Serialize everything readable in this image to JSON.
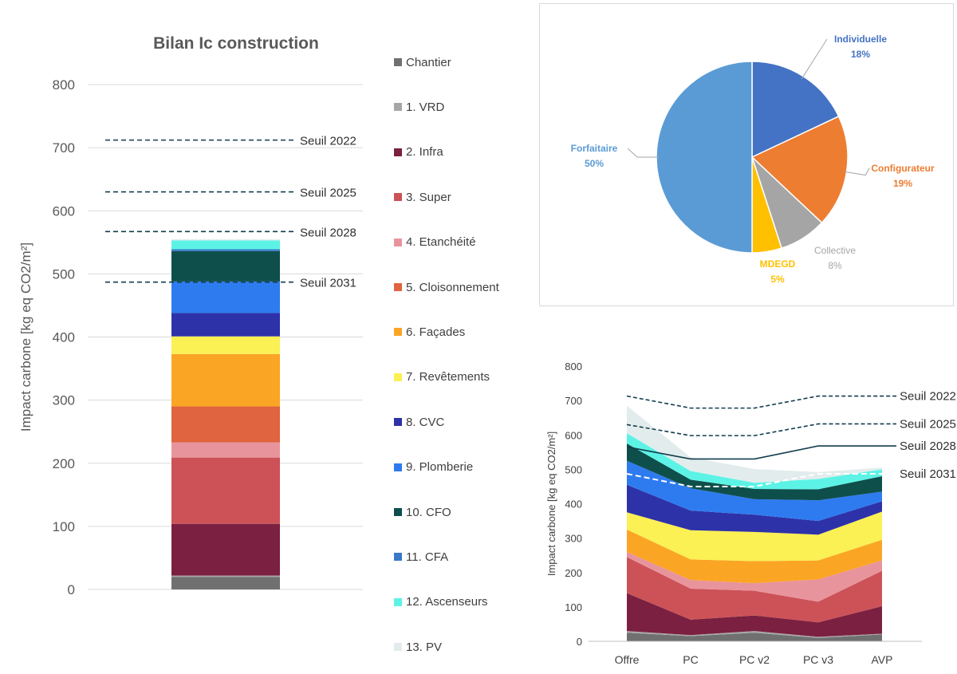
{
  "colors": {
    "Chantier": "#707070",
    "1. VRD": "#a6a6a6",
    "2. Infra": "#7b2041",
    "3. Super": "#cc5257",
    "4. Etanchéité": "#e8949c",
    "5. Cloisonnement": "#e0643f",
    "6. Façades": "#fba525",
    "7. Revêtements": "#fbf054",
    "8. CVC": "#2e32a8",
    "9. Plomberie": "#2e7bf0",
    "10. CFO": "#0e4f4c",
    "11. CFA": "#3a78c8",
    "12. Ascenseurs": "#5cf3e6",
    "13. PV": "#e3ecec",
    "threshold": "#123d4d",
    "pie_individuelle": "#4472c4",
    "pie_configurateur": "#ed7d31",
    "pie_collective": "#a5a5a5",
    "pie_mdegd": "#ffc000",
    "pie_forfaitaire": "#5b9bd5"
  },
  "chart_data": [
    {
      "type": "bar",
      "stacked": true,
      "title": "Bilan Ic construction",
      "ylabel": "Impact carbone [kg eq CO2/m²]",
      "ylim": [
        0,
        800
      ],
      "yticks": [
        0,
        100,
        200,
        300,
        400,
        500,
        600,
        700,
        800
      ],
      "ytick_labels": [
        "0",
        "100",
        "200",
        "300",
        "400",
        "500",
        "600",
        "700",
        "800"
      ],
      "series": [
        {
          "name": "Chantier",
          "value": 20
        },
        {
          "name": "1. VRD",
          "value": 2
        },
        {
          "name": "2. Infra",
          "value": 82
        },
        {
          "name": "3. Super",
          "value": 105
        },
        {
          "name": "4. Etanchéité",
          "value": 24
        },
        {
          "name": "5. Cloisonnement",
          "value": 57
        },
        {
          "name": "6. Façades",
          "value": 83
        },
        {
          "name": "7. Revêtements",
          "value": 28
        },
        {
          "name": "8. CVC",
          "value": 37
        },
        {
          "name": "9. Plomberie",
          "value": 50
        },
        {
          "name": "10. CFO",
          "value": 48
        },
        {
          "name": "11. CFA",
          "value": 3
        },
        {
          "name": "12. Ascenseurs",
          "value": 14
        },
        {
          "name": "13. PV",
          "value": 2
        }
      ],
      "thresholds": [
        {
          "label": "Seuil 2022",
          "value": 712
        },
        {
          "label": "Seuil 2025",
          "value": 630
        },
        {
          "label": "Seuil 2028",
          "value": 567
        },
        {
          "label": "Seuil 2031",
          "value": 487
        }
      ],
      "legend": [
        "Chantier",
        "1. VRD",
        "2. Infra",
        "3. Super",
        "4. Etanchéité",
        "5. Cloisonnement",
        "6. Façades",
        "7. Revêtements",
        "8. CVC",
        "9. Plomberie",
        "10. CFO",
        "11. CFA",
        "12. Ascenseurs",
        "13. PV"
      ]
    },
    {
      "type": "pie",
      "slices": [
        {
          "name": "Individuelle",
          "pct_label": "18%",
          "value": 18
        },
        {
          "name": "Configurateur",
          "pct_label": "19%",
          "value": 19
        },
        {
          "name": "Collective",
          "pct_label": "8%",
          "value": 8
        },
        {
          "name": "MDEGD",
          "pct_label": "5%",
          "value": 5
        },
        {
          "name": "Forfaitaire",
          "pct_label": "50%",
          "value": 50
        }
      ]
    },
    {
      "type": "area",
      "stacked": true,
      "ylabel": "Impact carbone [kg eq CO2/m²]",
      "ylim": [
        0,
        800
      ],
      "yticks": [
        0,
        100,
        200,
        300,
        400,
        500,
        600,
        700,
        800
      ],
      "ytick_labels": [
        "0",
        "100",
        "200",
        "300",
        "400",
        "500",
        "600",
        "700",
        "800"
      ],
      "categories": [
        "Offre",
        "PC",
        "PC v2",
        "PC v3",
        "AVP"
      ],
      "series": [
        {
          "name": "Chantier",
          "values": [
            25,
            15,
            25,
            10,
            20
          ]
        },
        {
          "name": "1. VRD",
          "values": [
            5,
            3,
            5,
            3,
            2
          ]
        },
        {
          "name": "2. Infra",
          "values": [
            110,
            45,
            45,
            42,
            80
          ]
        },
        {
          "name": "3. Super",
          "values": [
            105,
            90,
            72,
            60,
            103
          ]
        },
        {
          "name": "4. Etanchéité",
          "values": [
            15,
            25,
            22,
            65,
            30
          ]
        },
        {
          "name": "5. Cloisonnement",
          "values": [
            0,
            0,
            0,
            0,
            0
          ]
        },
        {
          "name": "6. Façades",
          "values": [
            65,
            60,
            64,
            55,
            60
          ]
        },
        {
          "name": "7. Revêtements",
          "values": [
            50,
            85,
            85,
            75,
            82
          ]
        },
        {
          "name": "8. CVC",
          "values": [
            80,
            57,
            50,
            40,
            30
          ]
        },
        {
          "name": "9. Plomberie",
          "values": [
            70,
            65,
            45,
            60,
            28
          ]
        },
        {
          "name": "10. CFO",
          "values": [
            50,
            25,
            30,
            32,
            45
          ]
        },
        {
          "name": "11. CFA",
          "values": [
            0,
            0,
            0,
            0,
            0
          ]
        },
        {
          "name": "12. Ascenseurs",
          "values": [
            30,
            25,
            18,
            30,
            20
          ]
        },
        {
          "name": "13. PV",
          "values": [
            80,
            40,
            40,
            20,
            5
          ]
        }
      ],
      "thresholds": [
        {
          "label": "Seuil 2022",
          "values": [
            713,
            678,
            678,
            713,
            713
          ],
          "style": "dashed"
        },
        {
          "label": "Seuil 2025",
          "values": [
            630,
            598,
            598,
            632,
            632
          ],
          "style": "dashed"
        },
        {
          "label": "Seuil 2028",
          "values": [
            565,
            530,
            530,
            568,
            568
          ],
          "style": "solid"
        },
        {
          "label": "Seuil 2031",
          "values": [
            487,
            450,
            450,
            487,
            487
          ],
          "style": "dashed-white"
        }
      ]
    }
  ]
}
